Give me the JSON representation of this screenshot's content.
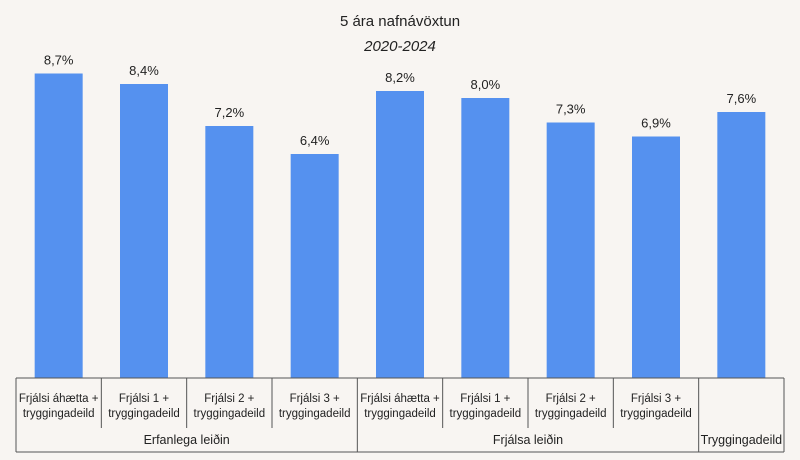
{
  "chart_data": {
    "type": "bar",
    "title": "5 ára nafnávöxtun",
    "subtitle": "2020-2024",
    "groups": [
      {
        "name": "Erfanlega leiðin",
        "count": 4
      },
      {
        "name": "Frjálsa leiðin",
        "count": 4
      },
      {
        "name": "Tryggingadeild",
        "count": 1
      }
    ],
    "categories": [
      [
        "Frjálsi áhætta +",
        "tryggingadeild"
      ],
      [
        "Frjálsi 1 +",
        "tryggingadeild"
      ],
      [
        "Frjálsi 2 +",
        "tryggingadeild"
      ],
      [
        "Frjálsi 3 +",
        "tryggingadeild"
      ],
      [
        "Frjálsi áhætta +",
        "tryggingadeild"
      ],
      [
        "Frjálsi 1 +",
        "tryggingadeild"
      ],
      [
        "Frjálsi 2 +",
        "tryggingadeild"
      ],
      [
        "Frjálsi 3 +",
        "tryggingadeild"
      ],
      [
        ""
      ]
    ],
    "values": [
      8.7,
      8.4,
      7.2,
      6.4,
      8.2,
      8.0,
      7.3,
      6.9,
      7.6
    ],
    "data_labels": [
      "8,7%",
      "8,4%",
      "7,2%",
      "6,4%",
      "8,2%",
      "8,0%",
      "7,3%",
      "6,9%",
      "7,6%"
    ],
    "ylim": [
      0,
      10
    ],
    "grid": false,
    "legend": "none",
    "bar_color": "#5591ef",
    "xlabel": "",
    "ylabel": ""
  }
}
